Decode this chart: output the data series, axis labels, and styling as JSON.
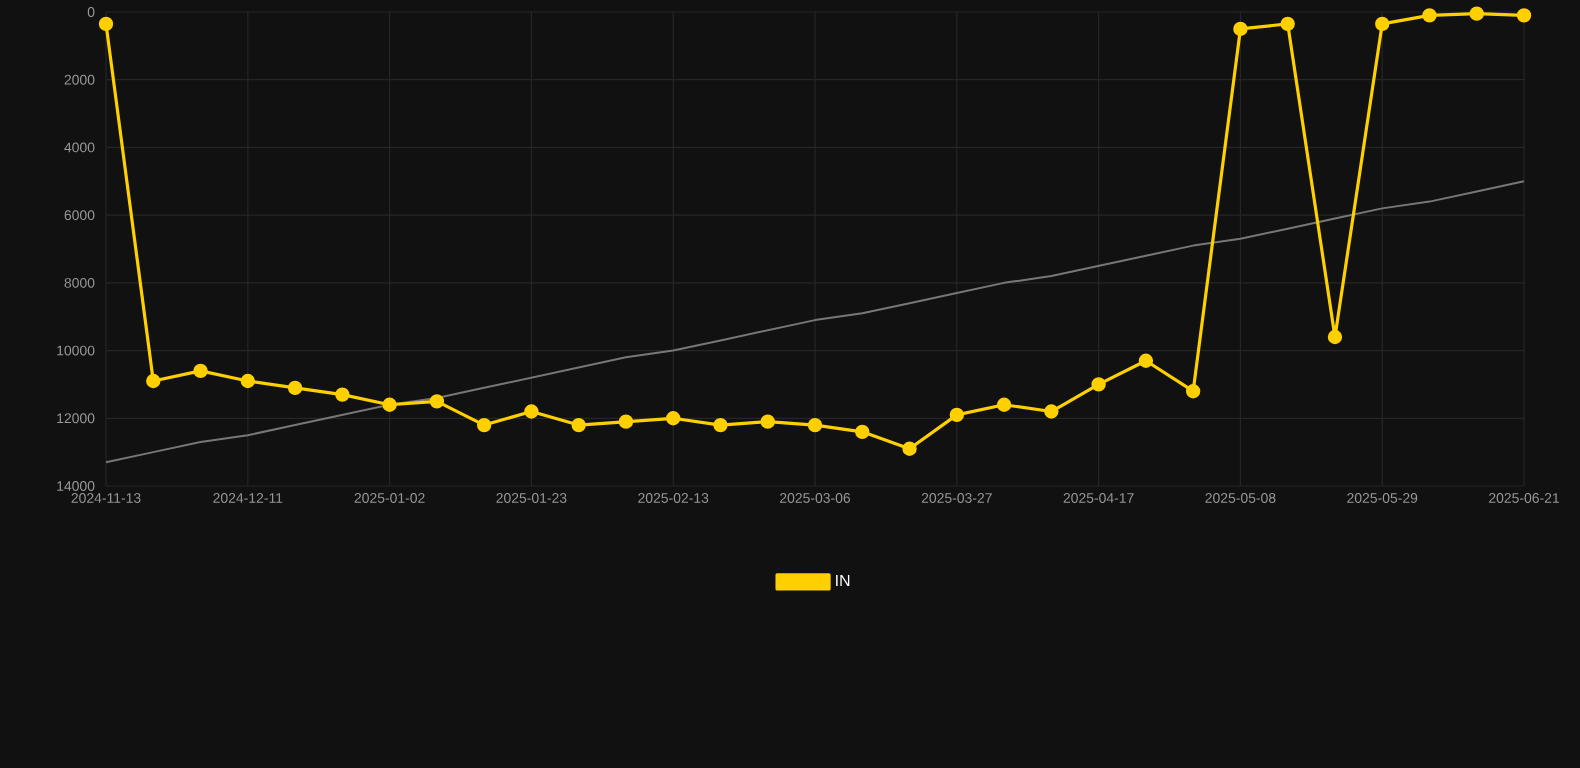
{
  "chart_data": {
    "type": "line",
    "categories": [
      "2024-11-13",
      null,
      null,
      "2024-12-11",
      null,
      null,
      "2025-01-02",
      null,
      null,
      "2025-01-23",
      null,
      null,
      "2025-02-13",
      null,
      null,
      "2025-03-06",
      null,
      null,
      "2025-03-27",
      null,
      null,
      "2025-04-17",
      null,
      null,
      "2025-05-08",
      null,
      null,
      "2025-05-29",
      null,
      null,
      "2025-06-21"
    ],
    "series": [
      {
        "name": "IN",
        "color": "#ffd000",
        "marker": "circle",
        "values": [
          350,
          10900,
          10600,
          10900,
          11100,
          11300,
          11600,
          11500,
          12200,
          11800,
          12200,
          12100,
          12000,
          12200,
          12100,
          12200,
          12400,
          12900,
          11900,
          11600,
          11800,
          11000,
          10300,
          11200,
          500,
          350,
          9600,
          350,
          100,
          50,
          100
        ]
      },
      {
        "color": "#777777",
        "marker": "none",
        "values": [
          13300,
          13000,
          12700,
          12500,
          12200,
          11900,
          11600,
          11400,
          11100,
          10800,
          10500,
          10200,
          10000,
          9700,
          9400,
          9100,
          8900,
          8600,
          8300,
          8000,
          7800,
          7500,
          7200,
          6900,
          6700,
          6400,
          6100,
          5800,
          5600,
          5300,
          5000
        ]
      }
    ],
    "ylim": [
      14000,
      0
    ],
    "yticks": [
      0,
      2000,
      4000,
      6000,
      8000,
      10000,
      12000,
      14000
    ],
    "grid": true,
    "legend": "bottom"
  }
}
